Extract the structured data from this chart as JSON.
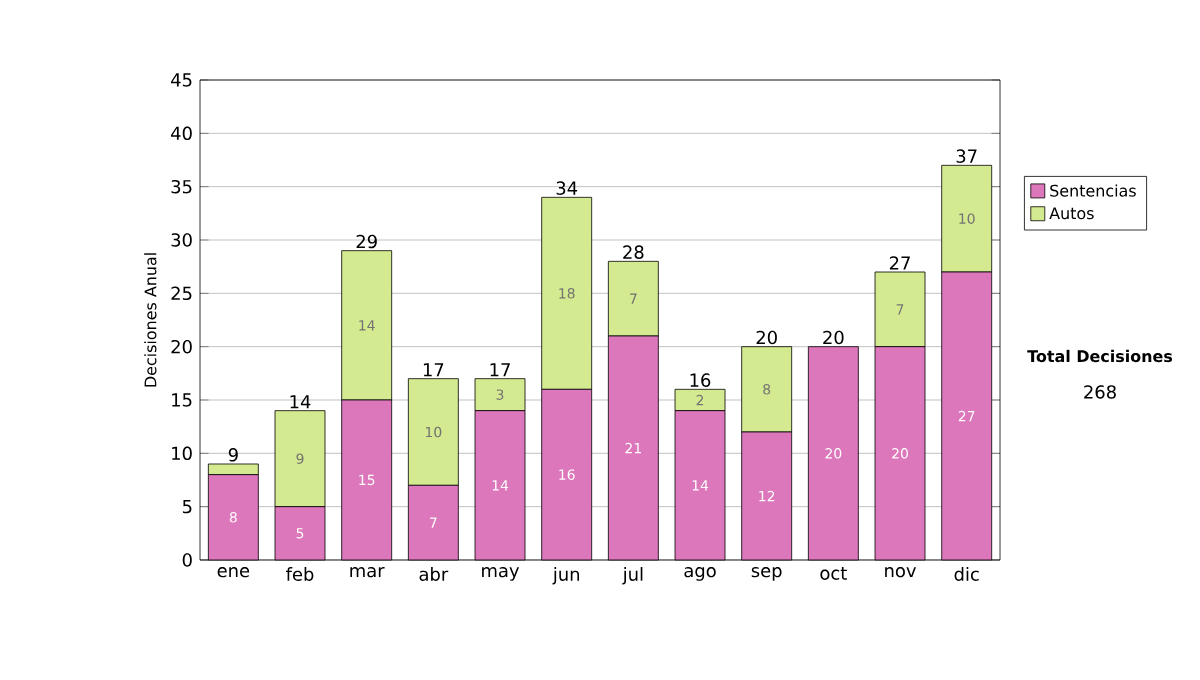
{
  "chart_data": {
    "type": "bar",
    "stacked": true,
    "ylabel": "Decisiones Anual",
    "categories": [
      "ene",
      "feb",
      "mar",
      "abr",
      "may",
      "jun",
      "jul",
      "ago",
      "sep",
      "oct",
      "nov",
      "dic"
    ],
    "series": [
      {
        "name": "Sentencias",
        "color": "#dd77bb",
        "values": [
          8,
          5,
          15,
          7,
          14,
          16,
          21,
          14,
          12,
          20,
          20,
          27
        ],
        "value_labels": [
          "8",
          "5",
          "15",
          "7",
          "14",
          "16",
          "21",
          "14",
          "12",
          "20",
          "20",
          "27"
        ]
      },
      {
        "name": "Autos",
        "color": "#d4ea90",
        "values": [
          1,
          9,
          14,
          10,
          3,
          18,
          7,
          2,
          8,
          0,
          7,
          10
        ],
        "value_labels": [
          null,
          "9",
          "14",
          "10",
          "3",
          "18",
          "7",
          "2",
          "8",
          null,
          "7",
          "10"
        ]
      }
    ],
    "totals": [
      "9",
      "14",
      "29",
      "17",
      "17",
      "34",
      "28",
      "16",
      "20",
      "20",
      "27",
      "37"
    ],
    "ylim": [
      0,
      45
    ],
    "yticks": [
      0,
      5,
      10,
      15,
      20,
      25,
      30,
      35,
      40,
      45
    ],
    "grid": "y",
    "legend": "right",
    "annotations": [
      "Total Decisiones",
      "268"
    ]
  }
}
